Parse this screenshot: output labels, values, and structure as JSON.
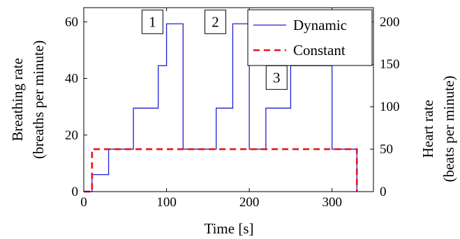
{
  "chart_data": {
    "type": "line",
    "xlabel": "Time [s]",
    "ylabel_left_line1": "Breathing rate",
    "ylabel_left_line2": "(breaths per minute)",
    "ylabel_right_line1": "Heart rate",
    "ylabel_right_line2": "(beats per minute)",
    "xlim": [
      0,
      350
    ],
    "ylim_left": [
      0,
      65
    ],
    "ylim_right": [
      0,
      216.67
    ],
    "x_ticks": [
      0,
      100,
      200,
      300
    ],
    "y_left_ticks": [
      0,
      20,
      40,
      60
    ],
    "y_right_ticks": [
      0,
      50,
      100,
      150,
      200
    ],
    "legend_position": "top-right",
    "series": [
      {
        "name": "Dynamic",
        "color": "#1f1fd8",
        "style": "solid",
        "step": true,
        "x": [
          0,
          10,
          10,
          30,
          30,
          60,
          60,
          90,
          90,
          100,
          100,
          120,
          120,
          160,
          160,
          180,
          180,
          200,
          200,
          220,
          220,
          250,
          250,
          300,
          300,
          330,
          330
        ],
        "y": [
          0,
          0,
          6,
          6,
          15,
          15,
          29.5,
          29.5,
          44.5,
          44.5,
          59.3,
          59.3,
          15,
          15,
          29.5,
          29.5,
          59.3,
          59.3,
          15,
          15,
          29.5,
          29.5,
          44.5,
          44.5,
          15,
          15,
          0
        ]
      },
      {
        "name": "Constant",
        "color": "#e8131b",
        "style": "dashed",
        "step": true,
        "x": [
          0,
          10,
          10,
          330,
          330
        ],
        "y": [
          0,
          0,
          15,
          15,
          0
        ]
      }
    ],
    "annotations": [
      {
        "label": "1",
        "x": 83,
        "y": 60
      },
      {
        "label": "2",
        "x": 159,
        "y": 60
      },
      {
        "label": "3",
        "x": 233,
        "y": 40.3
      }
    ]
  }
}
